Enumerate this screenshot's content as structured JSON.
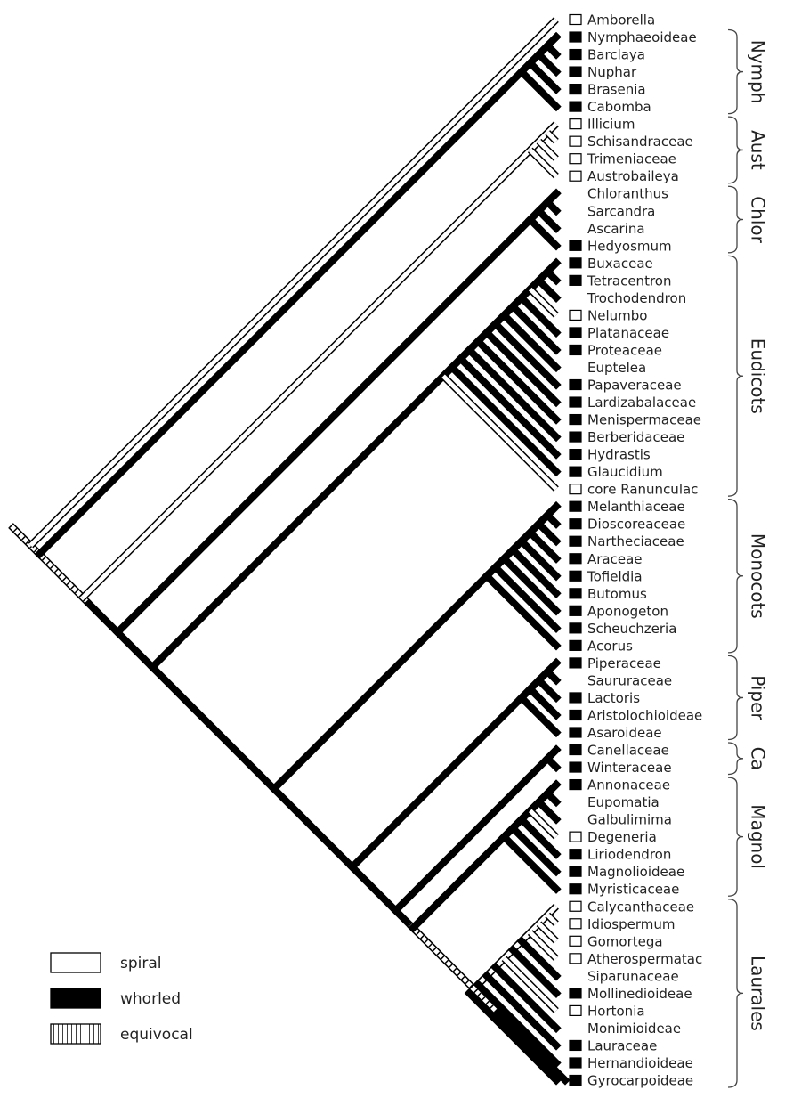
{
  "taxa": [
    {
      "name": "Amborella",
      "state": "spiral"
    },
    {
      "name": "Nymphaeoideae",
      "state": "whorled"
    },
    {
      "name": "Barclaya",
      "state": "whorled"
    },
    {
      "name": "Nuphar",
      "state": "whorled"
    },
    {
      "name": "Brasenia",
      "state": "whorled"
    },
    {
      "name": "Cabomba",
      "state": "whorled"
    },
    {
      "name": "Illicium",
      "state": "spiral"
    },
    {
      "name": "Schisandraceae",
      "state": "spiral"
    },
    {
      "name": "Trimeniaceae",
      "state": "spiral"
    },
    {
      "name": "Austrobaileya",
      "state": "spiral"
    },
    {
      "name": "Chloranthus",
      "state": "none"
    },
    {
      "name": "Sarcandra",
      "state": "none"
    },
    {
      "name": "Ascarina",
      "state": "none"
    },
    {
      "name": "Hedyosmum",
      "state": "whorled"
    },
    {
      "name": "Buxaceae",
      "state": "whorled"
    },
    {
      "name": "Tetracentron",
      "state": "whorled"
    },
    {
      "name": "Trochodendron",
      "state": "none"
    },
    {
      "name": "Nelumbo",
      "state": "spiral"
    },
    {
      "name": "Platanaceae",
      "state": "whorled"
    },
    {
      "name": "Proteaceae",
      "state": "whorled"
    },
    {
      "name": "Euptelea",
      "state": "none"
    },
    {
      "name": "Papaveraceae",
      "state": "whorled"
    },
    {
      "name": "Lardizabalaceae",
      "state": "whorled"
    },
    {
      "name": "Menispermaceae",
      "state": "whorled"
    },
    {
      "name": "Berberidaceae",
      "state": "whorled"
    },
    {
      "name": "Hydrastis",
      "state": "whorled"
    },
    {
      "name": "Glaucidium",
      "state": "whorled"
    },
    {
      "name": "core Ranunculac",
      "state": "spiral"
    },
    {
      "name": "Melanthiaceae",
      "state": "whorled"
    },
    {
      "name": "Dioscoreaceae",
      "state": "whorled"
    },
    {
      "name": "Nartheciaceae",
      "state": "whorled"
    },
    {
      "name": "Araceae",
      "state": "whorled"
    },
    {
      "name": "Tofieldia",
      "state": "whorled"
    },
    {
      "name": "Butomus",
      "state": "whorled"
    },
    {
      "name": "Aponogeton",
      "state": "whorled"
    },
    {
      "name": "Scheuchzeria",
      "state": "whorled"
    },
    {
      "name": "Acorus",
      "state": "whorled"
    },
    {
      "name": "Piperaceae",
      "state": "whorled"
    },
    {
      "name": "Saururaceae",
      "state": "none"
    },
    {
      "name": "Lactoris",
      "state": "whorled"
    },
    {
      "name": "Aristolochioideae",
      "state": "whorled"
    },
    {
      "name": "Asaroideae",
      "state": "whorled"
    },
    {
      "name": "Canellaceae",
      "state": "whorled"
    },
    {
      "name": "Winteraceae",
      "state": "whorled"
    },
    {
      "name": "Annonaceae",
      "state": "whorled"
    },
    {
      "name": "Eupomatia",
      "state": "none"
    },
    {
      "name": "Galbulimima",
      "state": "none"
    },
    {
      "name": "Degeneria",
      "state": "spiral"
    },
    {
      "name": "Liriodendron",
      "state": "whorled"
    },
    {
      "name": "Magnolioideae",
      "state": "whorled"
    },
    {
      "name": "Myristicaceae",
      "state": "whorled"
    },
    {
      "name": "Calycanthaceae",
      "state": "spiral"
    },
    {
      "name": "Idiospermum",
      "state": "spiral"
    },
    {
      "name": "Gomortega",
      "state": "spiral"
    },
    {
      "name": "Atherospermatac",
      "state": "spiral"
    },
    {
      "name": "Siparunaceae",
      "state": "none"
    },
    {
      "name": "Mollinedioideae",
      "state": "whorled"
    },
    {
      "name": "Hortonia",
      "state": "spiral"
    },
    {
      "name": "Monimioideae",
      "state": "none"
    },
    {
      "name": "Lauraceae",
      "state": "whorled"
    },
    {
      "name": "Hernandioideae",
      "state": "whorled"
    },
    {
      "name": "Gyrocarpoideae",
      "state": "whorled"
    }
  ],
  "clades": [
    {
      "label": "Nymph",
      "first": 1,
      "last": 5
    },
    {
      "label": "Aust",
      "first": 6,
      "last": 9
    },
    {
      "label": "Chlor",
      "first": 10,
      "last": 13
    },
    {
      "label": "Eudicots",
      "first": 14,
      "last": 27
    },
    {
      "label": "Monocots",
      "first": 28,
      "last": 36
    },
    {
      "label": "Piper",
      "first": 37,
      "last": 41
    },
    {
      "label": "Ca",
      "first": 42,
      "last": 43
    },
    {
      "label": "Magnol",
      "first": 44,
      "last": 50
    },
    {
      "label": "Laurales",
      "first": 51,
      "last": 61
    }
  ],
  "legend": [
    {
      "label": "spiral",
      "state": "spiral"
    },
    {
      "label": "whorled",
      "state": "whorled"
    },
    {
      "label": "equivocal",
      "state": "equivocal"
    }
  ]
}
